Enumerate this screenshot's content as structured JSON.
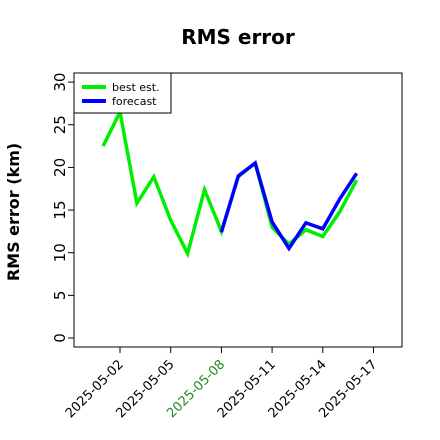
{
  "chart_data": {
    "type": "line",
    "title": "RMS error",
    "xlabel": "",
    "ylabel": "RMS error (km)",
    "ylim": [
      0,
      30
    ],
    "yticks": [
      "0",
      "5",
      "10",
      "15",
      "20",
      "25",
      "30"
    ],
    "xlim": [
      "2025-04-30",
      "2025-05-18"
    ],
    "xticks": [
      {
        "date": "2025-05-02",
        "label": "2025-05-02",
        "color": "#000000"
      },
      {
        "date": "2025-05-05",
        "label": "2025-05-05",
        "color": "#000000"
      },
      {
        "date": "2025-05-08",
        "label": "2025-05-08",
        "color": "#228B22"
      },
      {
        "date": "2025-05-11",
        "label": "2025-05-11",
        "color": "#000000"
      },
      {
        "date": "2025-05-14",
        "label": "2025-05-14",
        "color": "#000000"
      },
      {
        "date": "2025-05-17",
        "label": "2025-05-17",
        "color": "#000000"
      }
    ],
    "legend_position": "top-left",
    "grid": false,
    "series": [
      {
        "name": "best est.",
        "color": "#00ee00",
        "x": [
          "2025-05-01",
          "2025-05-02",
          "2025-05-03",
          "2025-05-04",
          "2025-05-05",
          "2025-05-06",
          "2025-05-07",
          "2025-05-08",
          "2025-05-09",
          "2025-05-10",
          "2025-05-11",
          "2025-05-12",
          "2025-05-13",
          "2025-05-14",
          "2025-05-15",
          "2025-05-16"
        ],
        "values": [
          22.5,
          26.5,
          15.8,
          18.9,
          13.8,
          9.9,
          17.4,
          12.5,
          18.9,
          20.5,
          13.0,
          11.0,
          12.7,
          11.9,
          14.8,
          18.5
        ]
      },
      {
        "name": "forecast",
        "color": "#0000ff",
        "x": [
          "2025-05-08",
          "2025-05-09",
          "2025-05-10",
          "2025-05-11",
          "2025-05-12",
          "2025-05-13",
          "2025-05-14",
          "2025-05-15",
          "2025-05-16"
        ],
        "values": [
          12.4,
          19.0,
          20.5,
          13.6,
          10.5,
          13.5,
          12.8,
          16.3,
          19.3
        ]
      }
    ]
  }
}
